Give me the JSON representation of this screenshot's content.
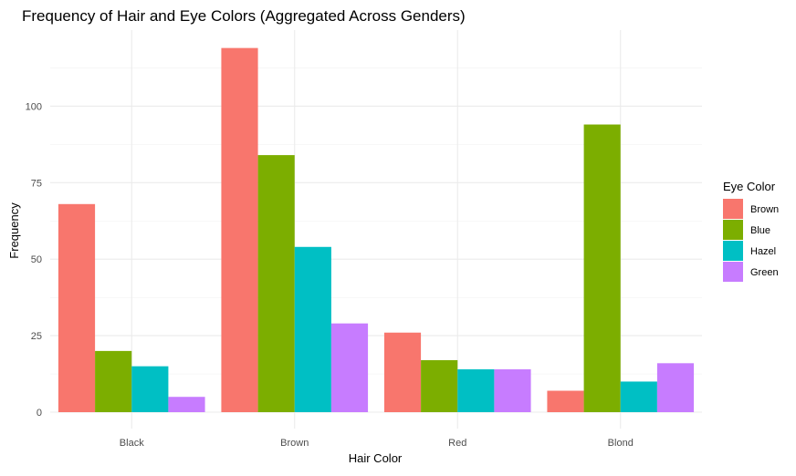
{
  "chart_data": {
    "type": "bar",
    "title": "Frequency of Hair and Eye Colors (Aggregated Across Genders)",
    "xlabel": "Hair Color",
    "ylabel": "Frequency",
    "categories": [
      "Black",
      "Brown",
      "Red",
      "Blond"
    ],
    "ylim": [
      0,
      125
    ],
    "yticks": [
      0,
      25,
      50,
      75,
      100
    ],
    "grid": true,
    "legend": {
      "title": "Eye Color",
      "placement": "right"
    },
    "series": [
      {
        "name": "Brown",
        "color": "#F8766D",
        "values": [
          68,
          119,
          26,
          7
        ]
      },
      {
        "name": "Blue",
        "color": "#7CAE00",
        "values": [
          20,
          84,
          17,
          94
        ]
      },
      {
        "name": "Hazel",
        "color": "#00BFC4",
        "values": [
          15,
          54,
          14,
          10
        ]
      },
      {
        "name": "Green",
        "color": "#C77CFF",
        "values": [
          5,
          29,
          14,
          16
        ]
      }
    ]
  }
}
